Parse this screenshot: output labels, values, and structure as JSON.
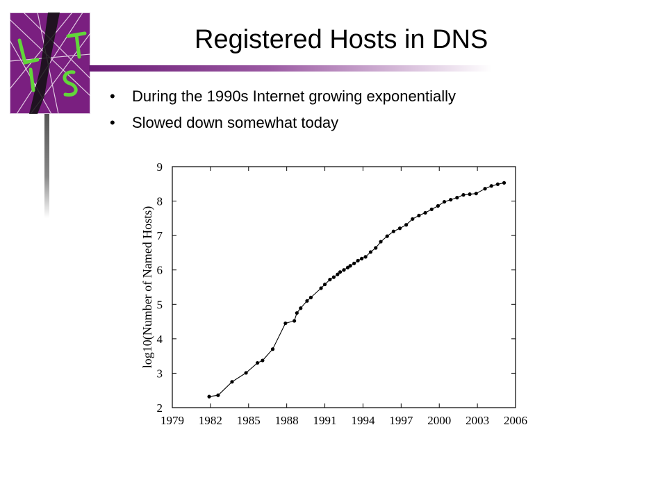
{
  "slide": {
    "title": "Registered Hosts in DNS",
    "bullets": [
      "During the 1990s Internet growing exponentially",
      "Slowed down somewhat today"
    ],
    "logo": {
      "icon": "list-logo-icon",
      "letters": [
        "L",
        "I",
        "S",
        "T"
      ],
      "background": "#7a1f80",
      "stroke": "#62d63a"
    },
    "title_rule_color": "#6a1a75"
  },
  "chart_data": {
    "type": "line",
    "title": "",
    "xlabel": "",
    "ylabel": "log10(Number of Named Hosts)",
    "xlim": [
      1979,
      2006
    ],
    "ylim": [
      2,
      9
    ],
    "xticks": [
      1979,
      1982,
      1985,
      1988,
      1991,
      1994,
      1997,
      2000,
      2003,
      2006
    ],
    "yticks": [
      2,
      3,
      4,
      5,
      6,
      7,
      8,
      9
    ],
    "grid": false,
    "legend": "none",
    "line_color": "#000000",
    "x": [
      1981.9,
      1982.6,
      1983.7,
      1984.8,
      1985.7,
      1986.1,
      1986.9,
      1987.9,
      1988.6,
      1988.8,
      1989.1,
      1989.6,
      1989.9,
      1990.7,
      1991.0,
      1991.4,
      1991.7,
      1992.0,
      1992.2,
      1992.5,
      1992.8,
      1993.0,
      1993.3,
      1993.6,
      1993.9,
      1994.2,
      1994.6,
      1995.0,
      1995.4,
      1995.9,
      1996.4,
      1996.9,
      1997.4,
      1997.9,
      1998.4,
      1998.9,
      1999.4,
      1999.9,
      2000.4,
      2000.9,
      2001.4,
      2001.9,
      2002.4,
      2002.9,
      2003.6,
      2004.1,
      2004.6,
      2005.1
    ],
    "y": [
      2.32,
      2.36,
      2.75,
      3.01,
      3.3,
      3.37,
      3.7,
      4.45,
      4.52,
      4.75,
      4.89,
      5.1,
      5.2,
      5.47,
      5.58,
      5.72,
      5.79,
      5.87,
      5.94,
      6.0,
      6.07,
      6.12,
      6.19,
      6.27,
      6.33,
      6.38,
      6.52,
      6.64,
      6.82,
      6.98,
      7.12,
      7.21,
      7.31,
      7.48,
      7.58,
      7.66,
      7.76,
      7.86,
      7.98,
      8.04,
      8.1,
      8.18,
      8.2,
      8.22,
      8.36,
      8.44,
      8.49,
      8.53
    ]
  }
}
